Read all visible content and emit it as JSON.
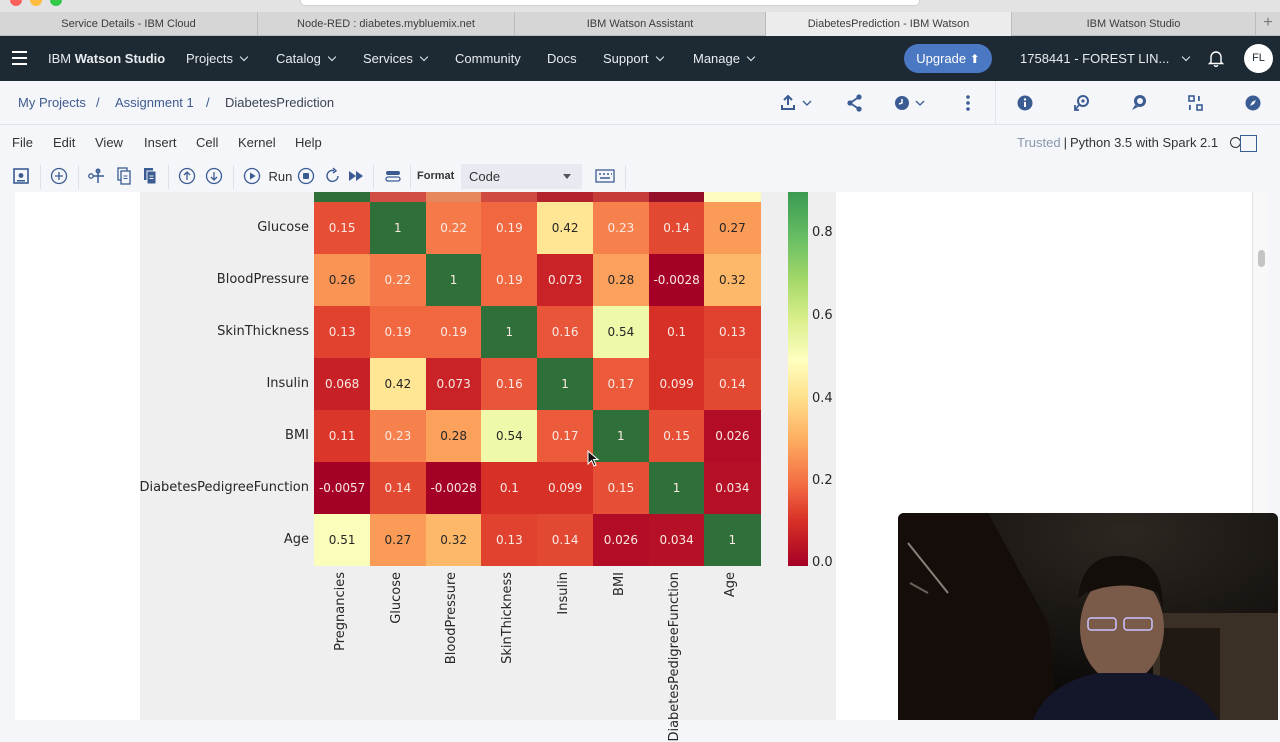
{
  "browser": {
    "tabs": [
      {
        "label": "Service Details - IBM Cloud",
        "active": false
      },
      {
        "label": "Node-RED : diabetes.mybluemix.net",
        "active": false
      },
      {
        "label": "IBM Watson Assistant",
        "active": false
      },
      {
        "label": "DiabetesPrediction - IBM Watson",
        "active": true
      },
      {
        "label": "IBM Watson Studio",
        "active": false
      }
    ],
    "new_tab": "+"
  },
  "topnav": {
    "brand_prefix": "IBM ",
    "brand_name": "Watson Studio",
    "items": [
      "Projects",
      "Catalog",
      "Services",
      "Community",
      "Docs",
      "Support",
      "Manage"
    ],
    "upgrade_label": "Upgrade",
    "account": "1758441 - FOREST LIN...",
    "avatar_initials": "FL",
    "brand_color": "#1d2a33",
    "upgrade_color": "#4a78c2"
  },
  "breadcrumb": {
    "items": [
      "My Projects",
      "Assignment 1",
      "DiabetesPrediction"
    ],
    "separator": "/"
  },
  "menubar": {
    "items": [
      "File",
      "Edit",
      "View",
      "Insert",
      "Cell",
      "Kernel",
      "Help"
    ],
    "trusted": "Trusted",
    "kernel": "Python 3.5 with Spark 2.1"
  },
  "toolbar": {
    "run_label": "Run",
    "format_label": "Format",
    "format_value": "Code"
  },
  "chart_data": {
    "type": "heatmap",
    "title": "",
    "row_labels_visible": [
      "Glucose",
      "BloodPressure",
      "SkinThickness",
      "Insulin",
      "BMI",
      "DiabetesPedigreeFunction",
      "Age"
    ],
    "col_labels": [
      "Pregnancies",
      "Glucose",
      "BloodPressure",
      "SkinThickness",
      "Insulin",
      "BMI",
      "DiabetesPedigreeFunction",
      "Age"
    ],
    "values": [
      [
        "0.15",
        "1",
        "0.22",
        "0.19",
        "0.42",
        "0.23",
        "0.14",
        "0.27"
      ],
      [
        "0.26",
        "0.22",
        "1",
        "0.19",
        "0.073",
        "0.28",
        "-0.0028",
        "0.32"
      ],
      [
        "0.13",
        "0.19",
        "0.19",
        "1",
        "0.16",
        "0.54",
        "0.1",
        "0.13"
      ],
      [
        "0.068",
        "0.42",
        "0.073",
        "0.16",
        "1",
        "0.17",
        "0.099",
        "0.14"
      ],
      [
        "0.11",
        "0.23",
        "0.28",
        "0.54",
        "0.17",
        "1",
        "0.15",
        "0.026"
      ],
      [
        "-0.0057",
        "0.14",
        "-0.0028",
        "0.1",
        "0.099",
        "0.15",
        "1",
        "0.034"
      ],
      [
        "0.51",
        "0.27",
        "0.32",
        "0.13",
        "0.14",
        "0.026",
        "0.034",
        "1"
      ]
    ],
    "partial_top_row_colors": [
      "#2f6f3a",
      "#d14f42",
      "#e7875c",
      "#cf4a40",
      "#b2232d",
      "#c63c38",
      "#930f2a",
      "#fdfcc0"
    ],
    "colormap": "RdYlGn",
    "colorbar_ticks": [
      "0.8",
      "0.6",
      "0.4",
      "0.2",
      "0.0"
    ],
    "vmin": 0.0,
    "vmax": 1.0
  }
}
